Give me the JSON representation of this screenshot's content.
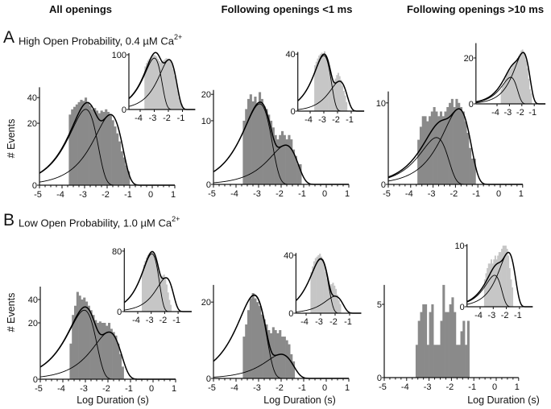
{
  "columns": [
    "All openings",
    "Following openings <1 ms",
    "Following openings >10 ms"
  ],
  "panels": {
    "A": {
      "letter": "A",
      "label": "High Open Probability, 0.4 µM Ca",
      "superscript": "2+"
    },
    "B": {
      "letter": "B",
      "label": "Low Open Probability, 1.0 µM Ca",
      "superscript": "2+"
    }
  },
  "y_axis_label": "# Events",
  "x_axis_label": "Log Duration (s)",
  "colors": {
    "main_bars": "#8a8a8a",
    "inset_bars": "#c6c6c6",
    "fit_curves": "#000000"
  },
  "chart_data": [
    {
      "id": "A-all",
      "type": "bar",
      "panel": "A",
      "column": 0,
      "inset": false,
      "yscale": "sqrt",
      "xlim": [
        -5,
        1
      ],
      "ylim": [
        0,
        50
      ],
      "bin_start": -3.7,
      "bin_width": 0.1,
      "values": [
        26,
        30,
        32,
        34,
        36,
        38,
        37,
        40,
        36,
        33,
        30,
        31,
        29,
        27,
        29,
        28,
        30,
        28,
        26,
        22,
        18,
        14,
        10,
        6,
        4,
        2,
        1
      ],
      "x_ticks": [
        -5,
        -4,
        -3,
        -2,
        -1,
        0,
        1
      ],
      "y_ticks": [
        0,
        20,
        40
      ],
      "ylabel": "# Events",
      "xlabel": "",
      "fit_components": [
        {
          "peak_log_duration": -2.95,
          "peak": 30
        },
        {
          "peak_log_duration": -1.85,
          "peak": 26
        }
      ]
    },
    {
      "id": "A-all-inset",
      "type": "bar",
      "panel": "A",
      "column": 0,
      "inset": true,
      "yscale": "sqrt",
      "xlim": [
        -4.8,
        -0.1
      ],
      "ylim": [
        0,
        106
      ],
      "bin_start": -3.7,
      "bin_width": 0.1,
      "values": [
        62,
        72,
        80,
        86,
        92,
        96,
        100,
        98,
        94,
        86,
        78,
        74,
        76,
        80,
        84,
        88,
        86,
        84,
        78,
        68,
        54,
        38,
        24,
        12,
        5,
        2,
        1
      ],
      "x_ticks": [
        -4,
        -3,
        -2,
        -1
      ],
      "y_ticks": [
        0,
        100
      ],
      "fit_components": [
        {
          "peak_log_duration": -3.0,
          "peak": 88
        },
        {
          "peak_log_duration": -1.95,
          "peak": 83
        }
      ]
    },
    {
      "id": "A-short",
      "type": "bar",
      "panel": "A",
      "column": 1,
      "inset": false,
      "yscale": "sqrt",
      "xlim": [
        -5,
        1
      ],
      "ylim": [
        0,
        22
      ],
      "bin_start": -3.7,
      "bin_width": 0.1,
      "values": [
        10,
        14,
        18,
        20,
        17,
        19,
        16,
        21,
        18,
        15,
        14,
        12,
        10,
        8,
        6,
        5,
        6,
        7,
        6,
        5,
        6,
        5,
        3,
        2,
        1,
        1,
        0
      ],
      "x_ticks": [
        -5,
        -4,
        -3,
        -2,
        -1,
        0,
        1
      ],
      "y_ticks": [
        0,
        10,
        20
      ],
      "xlabel": "",
      "fit_components": [
        {
          "peak_log_duration": -2.95,
          "peak": 16
        },
        {
          "peak_log_duration": -1.8,
          "peak": 3.8
        }
      ]
    },
    {
      "id": "A-short-inset",
      "type": "bar",
      "panel": "A",
      "column": 1,
      "inset": true,
      "yscale": "sqrt",
      "xlim": [
        -4.9,
        -0.05
      ],
      "ylim": [
        0,
        43
      ],
      "bin_start": -3.7,
      "bin_width": 0.1,
      "values": [
        26,
        30,
        34,
        38,
        40,
        42,
        40,
        44,
        38,
        32,
        26,
        20,
        14,
        12,
        11,
        13,
        16,
        18,
        15,
        12,
        8,
        5,
        3,
        1,
        0,
        0,
        0
      ],
      "x_ticks": [
        -4,
        -3,
        -2,
        -1
      ],
      "y_ticks": [
        0,
        40
      ],
      "fit_components": [
        {
          "peak_log_duration": -3.0,
          "peak": 38
        },
        {
          "peak_log_duration": -1.85,
          "peak": 11
        }
      ]
    },
    {
      "id": "A-long",
      "type": "bar",
      "panel": "A",
      "column": 2,
      "inset": false,
      "yscale": "sqrt",
      "xlim": [
        -5,
        1
      ],
      "ylim": [
        0,
        13
      ],
      "bin_start": -3.7,
      "bin_width": 0.1,
      "values": [
        3,
        5,
        7,
        7,
        6,
        7,
        8,
        9,
        8,
        7,
        8,
        7,
        8,
        9,
        10,
        11,
        9,
        11,
        10,
        9,
        8,
        6,
        4,
        2,
        1,
        1,
        0
      ],
      "x_ticks": [
        -5,
        -4,
        -3,
        -2,
        -1,
        0,
        1
      ],
      "y_ticks": [
        0,
        10
      ],
      "xlabel": "",
      "fit_components": [
        {
          "peak_log_duration": -2.85,
          "peak": 3.3
        },
        {
          "peak_log_duration": -1.85,
          "peak": 8.6
        }
      ]
    },
    {
      "id": "A-long-inset",
      "type": "bar",
      "panel": "A",
      "column": 2,
      "inset": true,
      "yscale": "sqrt",
      "xlim": [
        -5.7,
        -0.1
      ],
      "ylim": [
        0,
        35
      ],
      "bin_start": -3.7,
      "bin_width": 0.1,
      "values": [
        2,
        3,
        4,
        6,
        8,
        9,
        10,
        11,
        12,
        14,
        15,
        17,
        18,
        20,
        22,
        24,
        27,
        28,
        26,
        24,
        18,
        12,
        6,
        2,
        1,
        0,
        0
      ],
      "x_ticks": [
        -4,
        -3,
        -2,
        -1
      ],
      "y_ticks": [
        0,
        20
      ],
      "fit_components": [
        {
          "peak_log_duration": -2.9,
          "peak": 6.7
        },
        {
          "peak_log_duration": -1.9,
          "peak": 25
        }
      ]
    },
    {
      "id": "B-all",
      "type": "bar",
      "panel": "B",
      "column": 0,
      "inset": false,
      "yscale": "sqrt",
      "xlim": [
        -5,
        1
      ],
      "ylim": [
        0,
        54
      ],
      "bin_start": -3.7,
      "bin_width": 0.1,
      "values": [
        8,
        26,
        34,
        48,
        44,
        40,
        42,
        38,
        34,
        30,
        26,
        22,
        20,
        21,
        20,
        20,
        18,
        20,
        16,
        14,
        12,
        8,
        4,
        1,
        0,
        0,
        0
      ],
      "x_ticks": [
        -5,
        -4,
        -3,
        -2,
        -1,
        0,
        1
      ],
      "y_ticks": [
        0,
        20,
        40
      ],
      "ylabel": "# Events",
      "xlabel": "Log Duration (s)",
      "fit_components": [
        {
          "peak_log_duration": -3.05,
          "peak": 30
        },
        {
          "peak_log_duration": -1.95,
          "peak": 14
        }
      ]
    },
    {
      "id": "B-all-inset",
      "type": "bar",
      "panel": "B",
      "column": 0,
      "inset": true,
      "yscale": "sqrt",
      "xlim": [
        -5,
        0
      ],
      "ylim": [
        0,
        88
      ],
      "bin_start": -3.7,
      "bin_width": 0.1,
      "values": [
        34,
        48,
        56,
        64,
        70,
        74,
        78,
        80,
        76,
        70,
        60,
        50,
        40,
        30,
        26,
        28,
        30,
        24,
        16,
        8,
        3,
        1,
        0,
        0,
        0,
        0,
        0
      ],
      "x_ticks": [
        -4,
        -3,
        -2,
        -1
      ],
      "y_ticks": [
        0,
        80
      ],
      "fit_components": [
        {
          "peak_log_duration": -2.95,
          "peak": 73
        },
        {
          "peak_log_duration": -1.9,
          "peak": 25
        }
      ]
    },
    {
      "id": "B-short",
      "type": "bar",
      "panel": "B",
      "column": 1,
      "inset": false,
      "yscale": "sqrt",
      "xlim": [
        -5,
        1
      ],
      "ylim": [
        0,
        30
      ],
      "bin_start": -3.7,
      "bin_width": 0.1,
      "values": [
        6,
        10,
        16,
        22,
        25,
        22,
        20,
        18,
        14,
        12,
        10,
        8,
        7,
        9,
        8,
        7,
        8,
        6,
        6,
        5,
        4,
        2,
        1,
        0,
        0,
        0,
        0
      ],
      "x_ticks": [
        -5,
        -4,
        -3,
        -2,
        -1,
        0,
        1
      ],
      "y_ticks": [
        0,
        20
      ],
      "xlabel": "Log Duration (s)",
      "fit_components": [
        {
          "peak_log_duration": -3.2,
          "peak": 23.6
        },
        {
          "peak_log_duration": -2.0,
          "peak": 2.0
        }
      ]
    },
    {
      "id": "B-short-inset",
      "type": "bar",
      "panel": "B",
      "column": 1,
      "inset": true,
      "yscale": "sqrt",
      "xlim": [
        -4.7,
        -0.2
      ],
      "ylim": [
        0,
        43
      ],
      "bin_start": -3.7,
      "bin_width": 0.1,
      "values": [
        20,
        26,
        32,
        36,
        38,
        40,
        42,
        38,
        34,
        28,
        20,
        14,
        10,
        9,
        10,
        11,
        9,
        7,
        4,
        2,
        1,
        0,
        0,
        0,
        0,
        0,
        0
      ],
      "x_ticks": [
        -4,
        -3,
        -2,
        -1
      ],
      "y_ticks": [
        0,
        40
      ],
      "fit_components": [
        {
          "peak_log_duration": -3.0,
          "peak": 34.5
        },
        {
          "peak_log_duration": -2.0,
          "peak": 3.4
        }
      ]
    },
    {
      "id": "B-long",
      "type": "bar",
      "panel": "B",
      "column": 2,
      "inset": false,
      "yscale": "sqrt",
      "xlim": [
        -5,
        1
      ],
      "ylim": [
        0,
        8
      ],
      "bin_start": -3.6,
      "bin_width": 0.1,
      "values": [
        1,
        3,
        4,
        5,
        5,
        1,
        4,
        5,
        1,
        1,
        1,
        3,
        8,
        4,
        4,
        5,
        6,
        4,
        1,
        1,
        2,
        3,
        1,
        3
      ],
      "x_ticks": [
        -5,
        -4,
        -3,
        -2,
        -1,
        0,
        1
      ],
      "y_ticks": [
        0,
        5
      ],
      "xlabel": "Log Duration (s)",
      "fit_components": []
    },
    {
      "id": "B-long-inset",
      "type": "bar",
      "panel": "B",
      "column": 2,
      "inset": true,
      "yscale": "sqrt",
      "xlim": [
        -5,
        0
      ],
      "ylim": [
        0,
        10.5
      ],
      "bin_start": -3.7,
      "bin_width": 0.1,
      "values": [
        2,
        3,
        4,
        5,
        5,
        6,
        5,
        6,
        7,
        6,
        7,
        8,
        8,
        9,
        10,
        10,
        10,
        9,
        7,
        4,
        2,
        1,
        0,
        0,
        0,
        0,
        0
      ],
      "x_ticks": [
        -4,
        -3,
        -2,
        -1
      ],
      "y_ticks": [
        0,
        10
      ],
      "fit_components": [
        {
          "peak_log_duration": -2.9,
          "peak": 2.65
        },
        {
          "peak_log_duration": -1.85,
          "peak": 7.9
        }
      ]
    }
  ]
}
